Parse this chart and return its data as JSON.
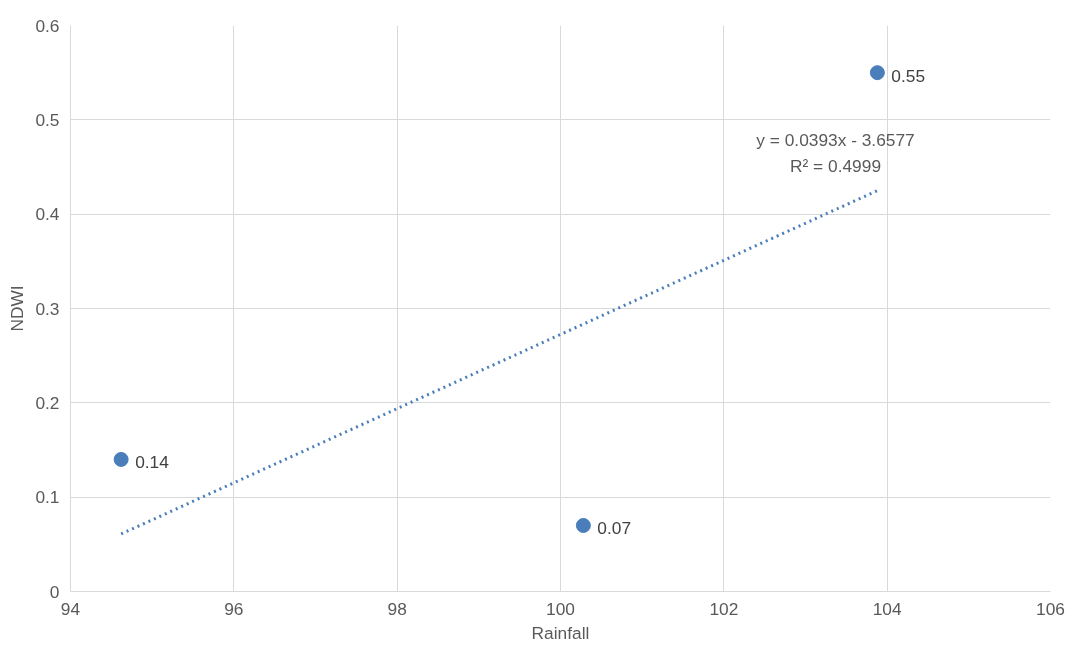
{
  "chart_data": {
    "type": "scatter",
    "xlabel": "Rainfall",
    "ylabel": "NDWI",
    "x": [
      94.62,
      100.28,
      103.88
    ],
    "xlim": [
      94,
      106
    ],
    "ylim": [
      0,
      0.6
    ],
    "xticks": [
      94,
      96,
      98,
      100,
      102,
      104,
      106
    ],
    "yticks": [
      0,
      0.1,
      0.2,
      0.3,
      0.4,
      0.5,
      0.6
    ],
    "grid": true,
    "series": [
      {
        "color": "#4a7ebb",
        "marker": "circle",
        "values": [
          0.14,
          0.07,
          0.55
        ],
        "value_labels": [
          "0.14",
          "0.07",
          "0.55"
        ]
      },
      {
        "type": "line",
        "color": "#4a7ebb",
        "line_style": "dotted",
        "x": [
          94.62,
          103.88
        ],
        "values": [
          0.061,
          0.425
        ]
      }
    ],
    "annotations": [
      "y = 0.0393x - 3.6577",
      "R² = 0.4999"
    ]
  }
}
